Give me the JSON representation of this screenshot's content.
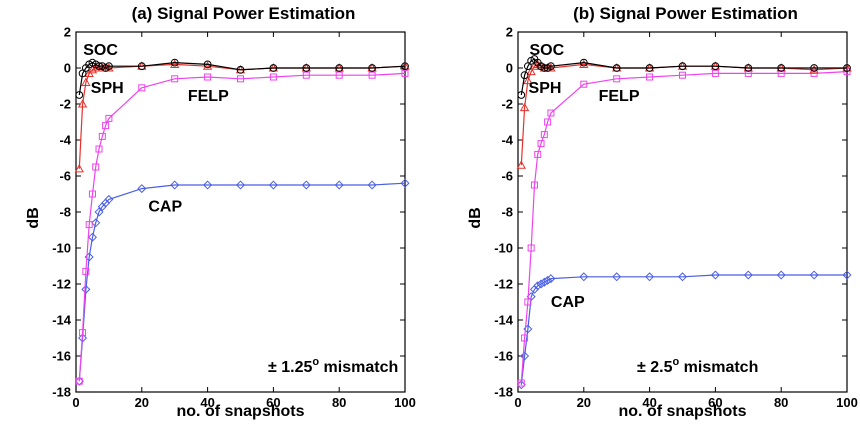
{
  "chart_data": [
    {
      "type": "line",
      "title": "(a) Signal Power Estimation",
      "xlabel": "no. of snapshots",
      "ylabel": "dB",
      "xlim": [
        0,
        100
      ],
      "ylim": [
        -18,
        2
      ],
      "xticks": [
        0,
        20,
        40,
        60,
        80,
        100
      ],
      "yticks": [
        2,
        0,
        -2,
        -4,
        -6,
        -8,
        -10,
        -12,
        -14,
        -16,
        -18
      ],
      "annotation_main": "± 1.25",
      "annotation_sup": "o",
      "annotation_tail": " mismatch",
      "series": [
        {
          "name": "SOC",
          "color": "#000000",
          "marker": "circle",
          "x": [
            1,
            2,
            3,
            4,
            5,
            6,
            7,
            8,
            9,
            10,
            20,
            30,
            40,
            50,
            60,
            70,
            80,
            90,
            100
          ],
          "y": [
            -1.5,
            -0.3,
            0.0,
            0.2,
            0.3,
            0.2,
            0.1,
            0.1,
            0.0,
            0.1,
            0.1,
            0.3,
            0.2,
            -0.1,
            0.0,
            0.0,
            0.0,
            0.0,
            0.1
          ]
        },
        {
          "name": "SPH",
          "color": "#e8302a",
          "marker": "triangle",
          "x": [
            1,
            2,
            3,
            4,
            5,
            6,
            7,
            8,
            9,
            10,
            20,
            30,
            40,
            50,
            60,
            70,
            80,
            90,
            100
          ],
          "y": [
            -5.6,
            -2.0,
            -0.8,
            -0.3,
            -0.1,
            0.0,
            0.0,
            0.0,
            0.0,
            0.0,
            0.1,
            0.2,
            0.1,
            -0.1,
            0.0,
            0.0,
            0.0,
            0.0,
            0.1
          ]
        },
        {
          "name": "FELP",
          "color": "#ee44ee",
          "marker": "square",
          "x": [
            1,
            2,
            3,
            4,
            5,
            6,
            7,
            8,
            9,
            10,
            20,
            30,
            40,
            50,
            60,
            70,
            80,
            90,
            100
          ],
          "y": [
            -17.4,
            -14.7,
            -11.3,
            -8.7,
            -7.0,
            -5.5,
            -4.5,
            -3.8,
            -3.2,
            -2.8,
            -1.1,
            -0.6,
            -0.5,
            -0.6,
            -0.5,
            -0.4,
            -0.4,
            -0.4,
            -0.3
          ]
        },
        {
          "name": "CAP",
          "color": "#4a5ee8",
          "marker": "diamond",
          "x": [
            1,
            2,
            3,
            4,
            5,
            6,
            7,
            8,
            9,
            10,
            20,
            30,
            40,
            50,
            60,
            70,
            80,
            90,
            100
          ],
          "y": [
            -17.4,
            -15.0,
            -12.3,
            -10.5,
            -9.4,
            -8.6,
            -8.0,
            -7.7,
            -7.5,
            -7.3,
            -6.7,
            -6.5,
            -6.5,
            -6.5,
            -6.5,
            -6.5,
            -6.5,
            -6.5,
            -6.4
          ]
        }
      ],
      "labels": [
        {
          "text": "SOC",
          "x": 2.2,
          "y": 1.0
        },
        {
          "text": "SPH",
          "x": 4.5,
          "y": -1.1
        },
        {
          "text": "FELP",
          "x": 34,
          "y": -1.55
        },
        {
          "text": "CAP",
          "x": 22,
          "y": -7.7
        }
      ]
    },
    {
      "type": "line",
      "title": "(b) Signal Power Estimation",
      "xlabel": "no. of snapshots",
      "ylabel": "dB",
      "xlim": [
        0,
        100
      ],
      "ylim": [
        -18,
        2
      ],
      "xticks": [
        0,
        20,
        40,
        60,
        80,
        100
      ],
      "yticks": [
        2,
        0,
        -2,
        -4,
        -6,
        -8,
        -10,
        -12,
        -14,
        -16,
        -18
      ],
      "annotation_main": "± 2.5",
      "annotation_sup": "o",
      "annotation_tail": " mismatch",
      "series": [
        {
          "name": "SOC",
          "color": "#000000",
          "marker": "circle",
          "x": [
            1,
            2,
            3,
            4,
            5,
            6,
            7,
            8,
            9,
            10,
            20,
            30,
            40,
            50,
            60,
            70,
            80,
            90,
            100
          ],
          "y": [
            -1.5,
            -0.4,
            0.1,
            0.4,
            0.5,
            0.3,
            0.1,
            0.0,
            0.0,
            0.1,
            0.3,
            0.0,
            0.0,
            0.1,
            0.1,
            0.0,
            0.0,
            0.0,
            0.0
          ]
        },
        {
          "name": "SPH",
          "color": "#e8302a",
          "marker": "triangle",
          "x": [
            1,
            2,
            3,
            4,
            5,
            6,
            7,
            8,
            9,
            10,
            20,
            30,
            40,
            50,
            60,
            70,
            80,
            90,
            100
          ],
          "y": [
            -5.4,
            -2.2,
            -0.7,
            -0.2,
            0.1,
            0.2,
            0.1,
            0.0,
            0.0,
            0.0,
            0.2,
            0.0,
            0.0,
            0.1,
            0.1,
            0.0,
            0.0,
            -0.1,
            0.0
          ]
        },
        {
          "name": "FELP",
          "color": "#ee44ee",
          "marker": "square",
          "x": [
            1,
            2,
            3,
            4,
            5,
            6,
            7,
            8,
            9,
            10,
            20,
            30,
            40,
            50,
            60,
            70,
            80,
            90,
            100
          ],
          "y": [
            -17.5,
            -15.0,
            -13.0,
            -10.0,
            -6.5,
            -4.8,
            -4.2,
            -3.7,
            -3.0,
            -2.5,
            -0.9,
            -0.6,
            -0.5,
            -0.4,
            -0.3,
            -0.3,
            -0.3,
            -0.3,
            -0.2
          ]
        },
        {
          "name": "CAP",
          "color": "#4a5ee8",
          "marker": "diamond",
          "x": [
            1,
            2,
            3,
            4,
            5,
            6,
            7,
            8,
            9,
            10,
            20,
            30,
            40,
            50,
            60,
            70,
            80,
            90,
            100
          ],
          "y": [
            -17.6,
            -16.0,
            -14.5,
            -12.7,
            -12.3,
            -12.1,
            -12.0,
            -11.9,
            -11.8,
            -11.7,
            -11.6,
            -11.6,
            -11.6,
            -11.6,
            -11.5,
            -11.5,
            -11.5,
            -11.5,
            -11.5
          ]
        }
      ],
      "labels": [
        {
          "text": "SOC",
          "x": 3.5,
          "y": 1.0
        },
        {
          "text": "SPH",
          "x": 3.2,
          "y": -1.1
        },
        {
          "text": "FELP",
          "x": 24.5,
          "y": -1.55
        },
        {
          "text": "CAP",
          "x": 10,
          "y": -13.0
        }
      ]
    }
  ]
}
